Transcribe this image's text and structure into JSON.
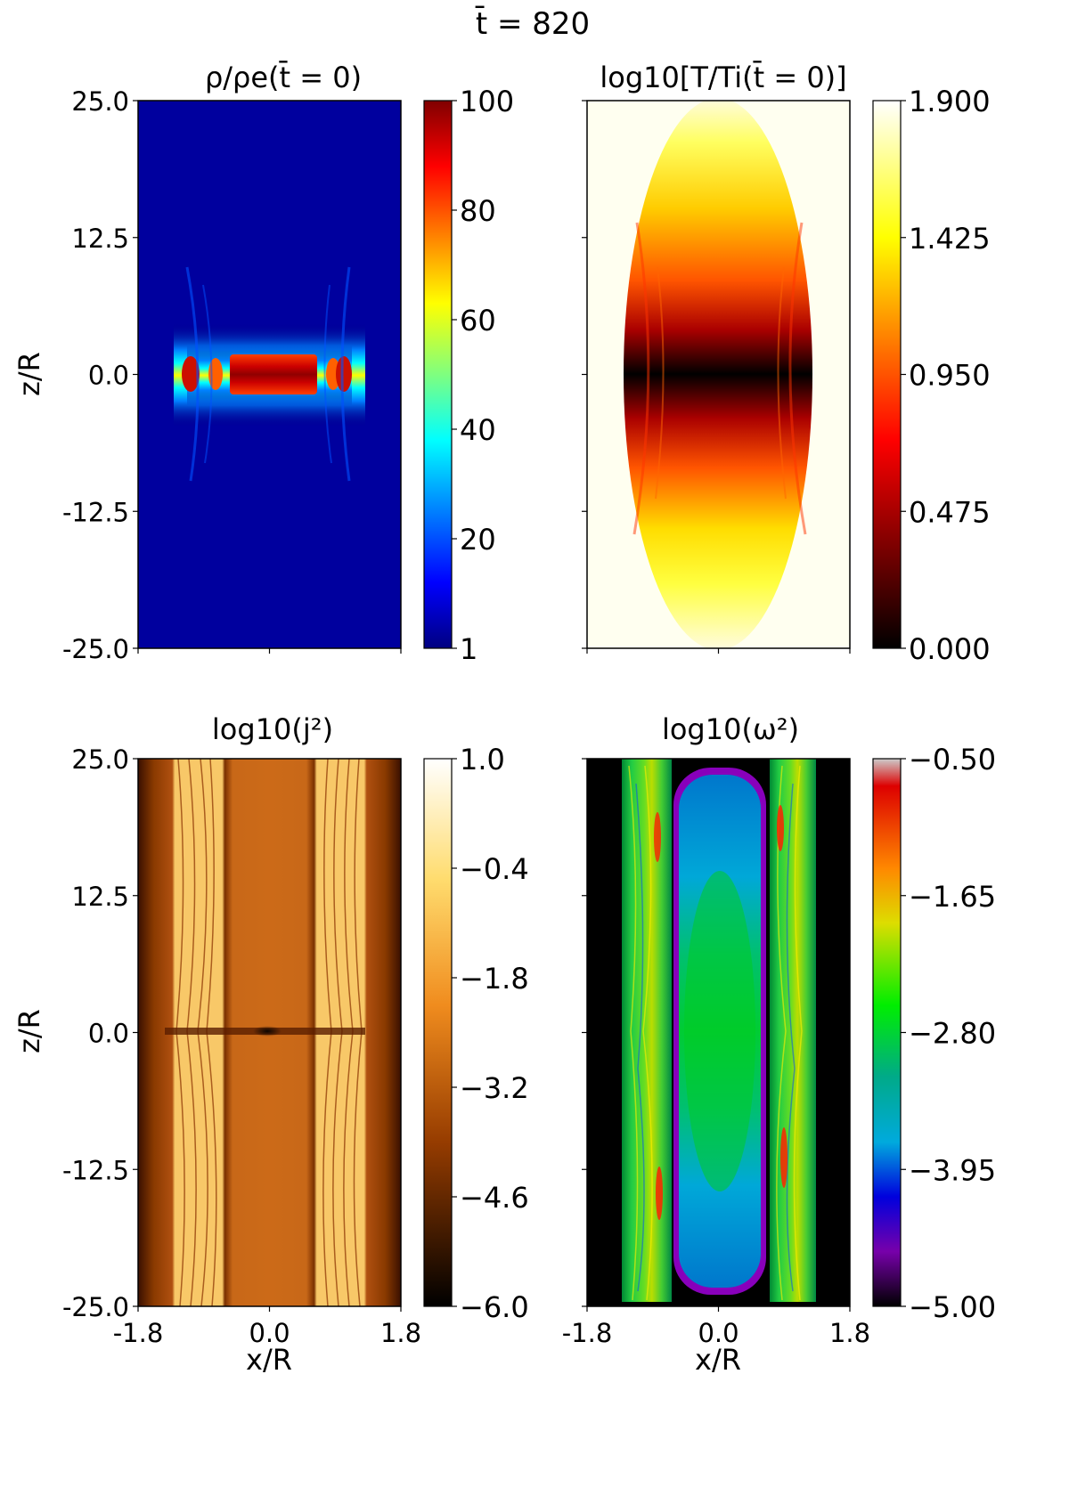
{
  "figure": {
    "suptitle": "t̄ = 820"
  },
  "chart_data": [
    {
      "type": "heatmap",
      "title": "ρ/ρe(t̄ = 0)",
      "field": "density",
      "colormap": "jet",
      "xlim": [
        -1.8,
        1.8
      ],
      "ylim": [
        -25.0,
        25.0
      ],
      "xlabel": "",
      "ylabel": "z/R",
      "xticks": [],
      "yticks": [
        "25.0",
        "12.5",
        "0.0",
        "-12.5",
        "-25.0"
      ],
      "colorbar": {
        "min": 1,
        "max": 100,
        "ticks": [
          "100",
          "80",
          "60",
          "40",
          "20",
          "1"
        ]
      }
    },
    {
      "type": "heatmap",
      "title": "log10[T/Ti(t̄ = 0)]",
      "field": "temperature",
      "colormap": "hot",
      "xlim": [
        -1.8,
        1.8
      ],
      "ylim": [
        -25.0,
        25.0
      ],
      "xlabel": "",
      "ylabel": "",
      "xticks": [],
      "yticks": [],
      "colorbar": {
        "min": 0.0,
        "max": 1.9,
        "ticks": [
          "1.900",
          "1.425",
          "0.950",
          "0.475",
          "0.000"
        ]
      }
    },
    {
      "type": "heatmap",
      "title": "log10(j²)",
      "field": "current_density",
      "colormap": "afmhot",
      "xlim": [
        -1.8,
        1.8
      ],
      "ylim": [
        -25.0,
        25.0
      ],
      "xlabel": "x/R",
      "ylabel": "z/R",
      "xticks": [
        "-1.8",
        "0.0",
        "1.8"
      ],
      "yticks": [
        "25.0",
        "12.5",
        "0.0",
        "-12.5",
        "-25.0"
      ],
      "colorbar": {
        "min": -6.0,
        "max": 1.0,
        "ticks": [
          "1.0",
          "−0.4",
          "−1.8",
          "−3.2",
          "−4.6",
          "−6.0"
        ]
      }
    },
    {
      "type": "heatmap",
      "title": "log10(ω²)",
      "field": "vorticity",
      "colormap": "nipy_spectral",
      "xlim": [
        -1.8,
        1.8
      ],
      "ylim": [
        -25.0,
        25.0
      ],
      "xlabel": "x/R",
      "ylabel": "",
      "xticks": [
        "-1.8",
        "0.0",
        "1.8"
      ],
      "yticks": [],
      "colorbar": {
        "min": -5.0,
        "max": -0.5,
        "ticks": [
          "−0.50",
          "−1.65",
          "−2.80",
          "−3.95",
          "−5.00"
        ]
      }
    }
  ]
}
